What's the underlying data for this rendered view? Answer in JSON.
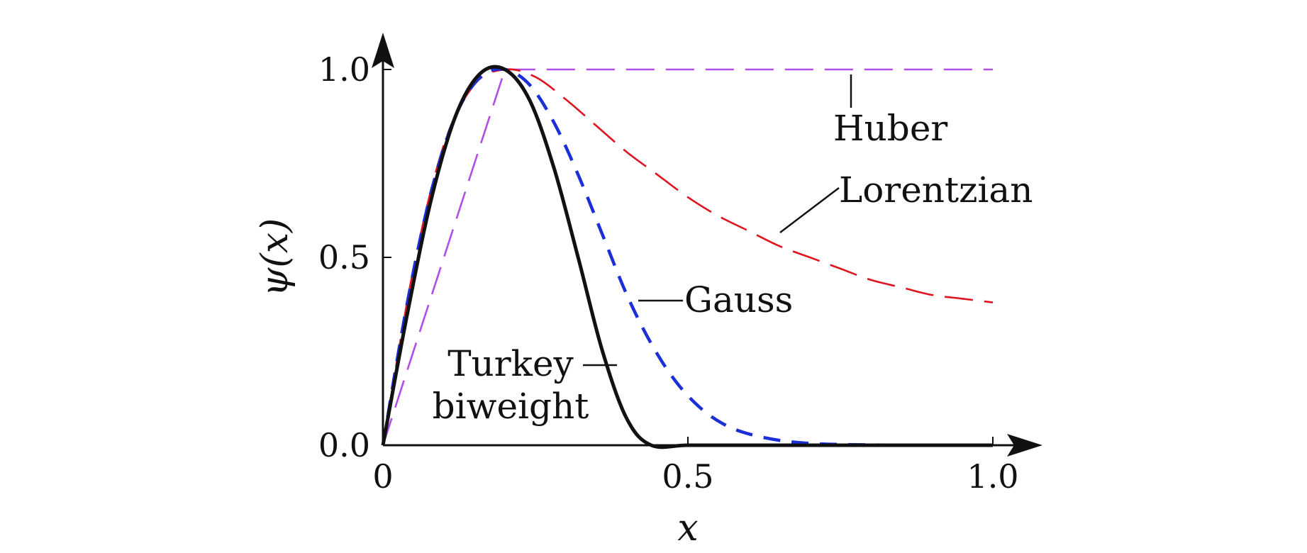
{
  "chart_data": {
    "type": "line",
    "xlabel": "x",
    "ylabel": "ψ(x)",
    "xlim": [
      0,
      1.0
    ],
    "ylim": [
      0,
      1.0
    ],
    "x_ticks": [
      {
        "value": 0,
        "label": "0"
      },
      {
        "value": 0.5,
        "label": "0.5"
      },
      {
        "value": 1.0,
        "label": "1.0"
      }
    ],
    "y_ticks": [
      {
        "value": 0,
        "label": "0.0"
      },
      {
        "value": 0.5,
        "label": "0.5"
      },
      {
        "value": 1.0,
        "label": "1.0"
      }
    ],
    "grid": false,
    "series": [
      {
        "name": "Huber",
        "color": "#b14ee8",
        "dash": "long-dash",
        "x": [
          0,
          0.2,
          0.3,
          0.4,
          0.5,
          0.6,
          0.7,
          0.8,
          0.9,
          1.0
        ],
        "y": [
          0,
          1.0,
          1.0,
          1.0,
          1.0,
          1.0,
          1.0,
          1.0,
          1.0,
          1.0
        ]
      },
      {
        "name": "Lorentzian",
        "color": "#e0141e",
        "dash": "long-dash",
        "x": [
          0,
          0.05,
          0.1,
          0.15,
          0.2,
          0.25,
          0.3,
          0.35,
          0.4,
          0.45,
          0.5,
          0.55,
          0.6,
          0.65,
          0.7,
          0.75,
          0.8,
          0.85,
          0.9,
          0.95,
          1.0
        ],
        "y": [
          0,
          0.47,
          0.8,
          0.96,
          1.0,
          0.98,
          0.92,
          0.85,
          0.78,
          0.72,
          0.66,
          0.61,
          0.57,
          0.53,
          0.5,
          0.47,
          0.44,
          0.42,
          0.4,
          0.39,
          0.38
        ]
      },
      {
        "name": "Gauss",
        "color": "#1b2fd8",
        "dash": "dash",
        "x": [
          0,
          0.04,
          0.08,
          0.12,
          0.16,
          0.2,
          0.24,
          0.28,
          0.32,
          0.36,
          0.4,
          0.44,
          0.48,
          0.52,
          0.56,
          0.6,
          0.65,
          0.7,
          0.75,
          0.8,
          0.85,
          0.9,
          1.0
        ],
        "y": [
          0,
          0.38,
          0.68,
          0.88,
          0.98,
          1.0,
          0.96,
          0.86,
          0.72,
          0.56,
          0.4,
          0.27,
          0.17,
          0.1,
          0.055,
          0.03,
          0.013,
          0.005,
          0.002,
          0.001,
          0,
          0,
          0
        ]
      },
      {
        "name": "Turkey biweight",
        "color": "#111111",
        "dash": "solid",
        "x": [
          0,
          0.04,
          0.08,
          0.12,
          0.16,
          0.2,
          0.24,
          0.28,
          0.32,
          0.36,
          0.4,
          0.44,
          0.5,
          0.6,
          0.7,
          0.8,
          0.9,
          1.0
        ],
        "y": [
          0,
          0.35,
          0.66,
          0.88,
          0.99,
          1.0,
          0.92,
          0.74,
          0.5,
          0.25,
          0.07,
          0,
          0,
          0,
          0,
          0,
          0,
          0
        ]
      }
    ],
    "annotations": [
      {
        "id": "huber",
        "lines": [
          "Huber"
        ]
      },
      {
        "id": "lorentzian",
        "lines": [
          "Lorentzian"
        ]
      },
      {
        "id": "gauss",
        "lines": [
          "Gauss"
        ]
      },
      {
        "id": "turkey",
        "lines": [
          "Turkey",
          "biweight"
        ]
      }
    ]
  }
}
